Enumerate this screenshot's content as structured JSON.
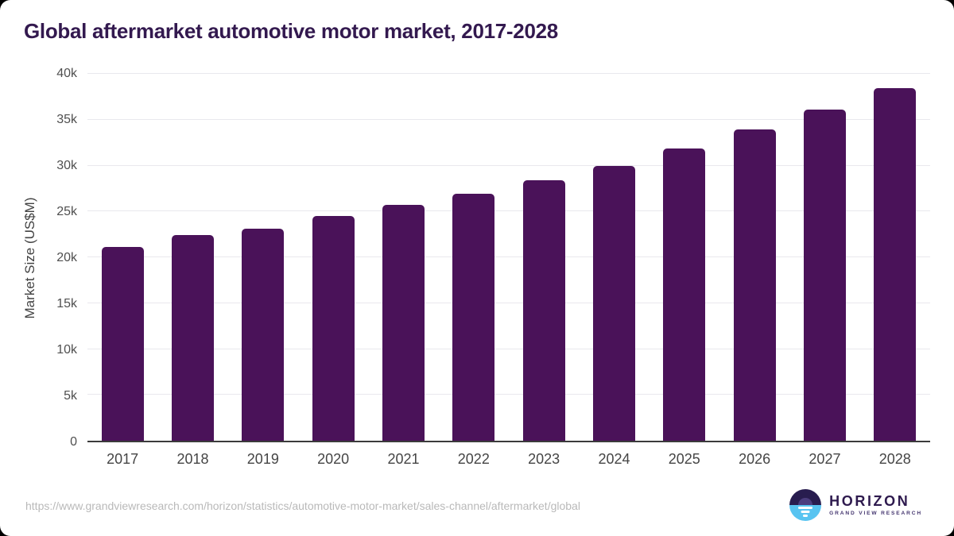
{
  "title": "Global aftermarket automotive motor market, 2017-2028",
  "chart_data": {
    "type": "bar",
    "title": "Global aftermarket automotive motor market, 2017-2028",
    "categories": [
      "2017",
      "2018",
      "2019",
      "2020",
      "2021",
      "2022",
      "2023",
      "2024",
      "2025",
      "2026",
      "2027",
      "2028"
    ],
    "values": [
      21100,
      22400,
      23100,
      24500,
      25700,
      26900,
      28400,
      30000,
      31900,
      33900,
      36100,
      38400
    ],
    "xlabel": "",
    "ylabel": "Market Size (US$M)",
    "ylim": [
      0,
      40000
    ],
    "yticks": [
      0,
      5000,
      10000,
      15000,
      20000,
      25000,
      30000,
      35000,
      40000
    ],
    "ytick_labels": [
      "0",
      "5k",
      "10k",
      "15k",
      "20k",
      "25k",
      "30k",
      "35k",
      "40k"
    ],
    "grid": true,
    "legend": false,
    "bar_color": "#4a1259"
  },
  "footer": {
    "source_url": "https://www.grandviewresearch.com/horizon/statistics/automotive-motor-market/sales-channel/aftermarket/global",
    "logo": {
      "name": "HORIZON",
      "subtitle": "GRAND VIEW RESEARCH"
    }
  },
  "colors": {
    "bar": "#4a1259",
    "title": "#33194f",
    "grid": "#e9e8ed",
    "axis": "#3b3b3b",
    "tick": "#4f4f4f",
    "xtick": "#454545",
    "ytitle": "#424242",
    "url": "#b9b9b9",
    "logo-dark": "#281d4f",
    "logo-blue": "#58c4f1",
    "logo-sun": "#4b3d7e",
    "logo-text": "#2e1a4e",
    "logo-sub": "#44356f",
    "card-bg": "#ffffff",
    "backdrop": "#000000"
  }
}
